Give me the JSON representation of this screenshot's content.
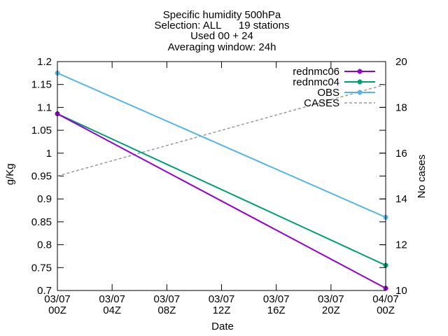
{
  "chart_data": {
    "type": "line",
    "title_lines": [
      "Specific humidity 500hPa",
      "Selection: ALL      19 stations",
      "Used 00 + 24",
      "Averaging window: 24h"
    ],
    "xlabel": "Date",
    "ylabel": "g/Kg",
    "y2label": "No cases",
    "x_ticks": [
      {
        "pos": 0,
        "l1": "03/07",
        "l2": "00Z"
      },
      {
        "pos": 4,
        "l1": "03/07",
        "l2": "04Z"
      },
      {
        "pos": 8,
        "l1": "03/07",
        "l2": "08Z"
      },
      {
        "pos": 12,
        "l1": "03/07",
        "l2": "12Z"
      },
      {
        "pos": 16,
        "l1": "03/07",
        "l2": "16Z"
      },
      {
        "pos": 20,
        "l1": "03/07",
        "l2": "20Z"
      },
      {
        "pos": 24,
        "l1": "04/07",
        "l2": "00Z"
      }
    ],
    "xlim": [
      0,
      24
    ],
    "ylim": [
      0.7,
      1.2
    ],
    "y_ticks": [
      "0.7",
      "0.75",
      "0.8",
      "0.85",
      "0.9",
      "0.95",
      "1",
      "1.05",
      "1.1",
      "1.15",
      "1.2"
    ],
    "y2lim": [
      10,
      20
    ],
    "y2_ticks": [
      "10",
      "12",
      "14",
      "16",
      "18",
      "20"
    ],
    "legend_position": "top-right",
    "series": [
      {
        "name": "rednmc06",
        "color": "#9400d3",
        "axis": "y",
        "dashed": false,
        "markers": true,
        "x": [
          0,
          24
        ],
        "values": [
          1.086,
          0.705
        ]
      },
      {
        "name": "rednmc04",
        "color": "#009e73",
        "axis": "y",
        "dashed": false,
        "markers": true,
        "x": [
          0,
          24
        ],
        "values": [
          1.086,
          0.755
        ]
      },
      {
        "name": "OBS",
        "color": "#56b4e9",
        "axis": "y",
        "dashed": false,
        "markers": true,
        "x": [
          0,
          24
        ],
        "values": [
          1.175,
          0.86
        ]
      },
      {
        "name": "CASES",
        "color": "#999999",
        "axis": "y2",
        "dashed": true,
        "markers": false,
        "x": [
          0,
          24
        ],
        "values": [
          15,
          19
        ]
      }
    ]
  }
}
